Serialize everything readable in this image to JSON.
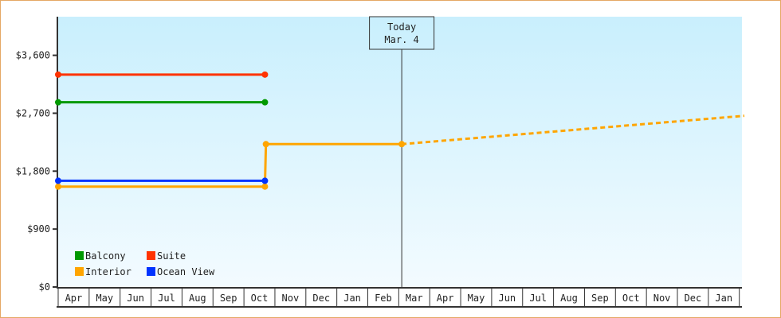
{
  "chart_data": {
    "type": "line",
    "title": "",
    "xlabel": "",
    "ylabel": "",
    "ylim": [
      0,
      4200
    ],
    "y_ticks": [
      "$0",
      "$900",
      "$1,800",
      "$2,700",
      "$3,600"
    ],
    "y_tick_values": [
      0,
      900,
      1800,
      2700,
      3600
    ],
    "categories": [
      "Apr",
      "May",
      "Jun",
      "Jul",
      "Aug",
      "Sep",
      "Oct",
      "Nov",
      "Dec",
      "Jan",
      "Feb",
      "Mar",
      "Apr",
      "May",
      "Jun",
      "Jul",
      "Aug",
      "Sep",
      "Oct",
      "Nov",
      "Dec",
      "Jan"
    ],
    "grid": false,
    "legend_position": "bottom-left",
    "today_marker": {
      "line1": "Today",
      "line2": "Mar. 4",
      "month_index": 11,
      "day": 4
    },
    "series": [
      {
        "name": "Balcony",
        "color": "#009900",
        "points": [
          {
            "month_index": 0,
            "day": 1,
            "value": 2870
          },
          {
            "month_index": 6,
            "day": 22,
            "value": 2870
          }
        ]
      },
      {
        "name": "Suite",
        "color": "#ff3300",
        "points": [
          {
            "month_index": 0,
            "day": 1,
            "value": 3300
          },
          {
            "month_index": 6,
            "day": 22,
            "value": 3300
          }
        ]
      },
      {
        "name": "Interior",
        "color": "#ffa500",
        "points": [
          {
            "month_index": 0,
            "day": 1,
            "value": 1560
          },
          {
            "month_index": 6,
            "day": 22,
            "value": 1560
          },
          {
            "month_index": 6,
            "day": 23,
            "value": 2220
          },
          {
            "month_index": 11,
            "day": 4,
            "value": 2220
          }
        ],
        "forecast": [
          {
            "month_index": 11,
            "day": 4,
            "value": 2220
          },
          {
            "month_index": 22,
            "day": 6,
            "value": 2660
          }
        ]
      },
      {
        "name": "Ocean View",
        "color": "#0033ff",
        "points": [
          {
            "month_index": 0,
            "day": 1,
            "value": 1650
          },
          {
            "month_index": 6,
            "day": 22,
            "value": 1650
          }
        ]
      }
    ]
  }
}
